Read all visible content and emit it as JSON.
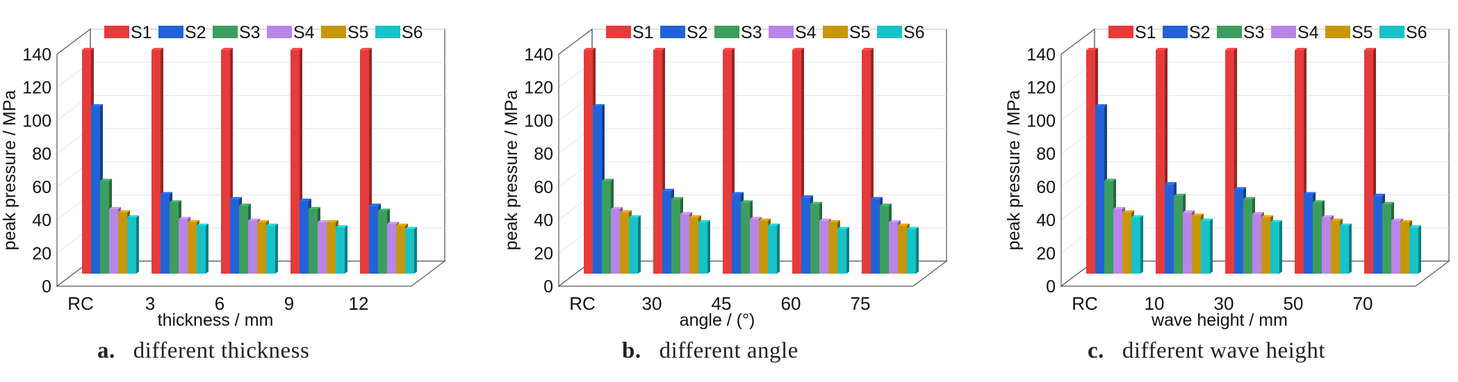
{
  "colors": {
    "S1": "#e63b3b",
    "S2": "#2262d6",
    "S3": "#3c9e5e",
    "S4": "#b985e8",
    "S5": "#c8960a",
    "S6": "#19c2c6"
  },
  "chart_data": [
    {
      "type": "bar",
      "panel_label": "a.",
      "caption": "different thickness",
      "xlabel": "thickness / mm",
      "ylabel": "peak pressure / MPa",
      "ylim": [
        0,
        140
      ],
      "yticks": [
        0,
        20,
        40,
        60,
        80,
        100,
        120,
        140
      ],
      "grid": true,
      "legend": "top",
      "categories": [
        "RC",
        "3",
        "6",
        "9",
        "12"
      ],
      "series": [
        {
          "name": "S1",
          "values": [
            135,
            135,
            135,
            135,
            135
          ]
        },
        {
          "name": "S2",
          "values": [
            101,
            48,
            45,
            44,
            41
          ]
        },
        {
          "name": "S3",
          "values": [
            56,
            43,
            41,
            39,
            38
          ]
        },
        {
          "name": "S4",
          "values": [
            39,
            33,
            32,
            31,
            30
          ]
        },
        {
          "name": "S5",
          "values": [
            37,
            31,
            31,
            31,
            29
          ]
        },
        {
          "name": "S6",
          "values": [
            34,
            29,
            29,
            28,
            27
          ]
        }
      ]
    },
    {
      "type": "bar",
      "panel_label": "b.",
      "caption": "different angle",
      "xlabel": "angle / (°)",
      "ylabel": "peak pressure / MPa",
      "ylim": [
        0,
        140
      ],
      "yticks": [
        0,
        20,
        40,
        60,
        80,
        100,
        120,
        140
      ],
      "grid": true,
      "legend": "top",
      "categories": [
        "RC",
        "30",
        "45",
        "60",
        "75"
      ],
      "series": [
        {
          "name": "S1",
          "values": [
            135,
            135,
            135,
            135,
            135
          ]
        },
        {
          "name": "S2",
          "values": [
            101,
            50,
            48,
            46,
            45
          ]
        },
        {
          "name": "S3",
          "values": [
            56,
            45,
            43,
            42,
            41
          ]
        },
        {
          "name": "S4",
          "values": [
            39,
            36,
            33,
            32,
            31
          ]
        },
        {
          "name": "S5",
          "values": [
            37,
            34,
            32,
            31,
            29
          ]
        },
        {
          "name": "S6",
          "values": [
            34,
            31,
            29,
            27,
            27
          ]
        }
      ]
    },
    {
      "type": "bar",
      "panel_label": "c.",
      "caption": "different wave height",
      "xlabel": "wave height / mm",
      "ylabel": "peak pressure / MPa",
      "ylim": [
        0,
        140
      ],
      "yticks": [
        0,
        20,
        40,
        60,
        80,
        100,
        120,
        140
      ],
      "grid": true,
      "legend": "top",
      "categories": [
        "RC",
        "10",
        "30",
        "50",
        "70"
      ],
      "series": [
        {
          "name": "S1",
          "values": [
            135,
            135,
            135,
            135,
            135
          ]
        },
        {
          "name": "S2",
          "values": [
            101,
            54,
            51,
            48,
            47
          ]
        },
        {
          "name": "S3",
          "values": [
            56,
            47,
            45,
            43,
            42
          ]
        },
        {
          "name": "S4",
          "values": [
            39,
            37,
            36,
            34,
            32
          ]
        },
        {
          "name": "S5",
          "values": [
            37,
            35,
            34,
            32,
            31
          ]
        },
        {
          "name": "S6",
          "values": [
            34,
            32,
            31,
            29,
            28
          ]
        }
      ]
    }
  ]
}
